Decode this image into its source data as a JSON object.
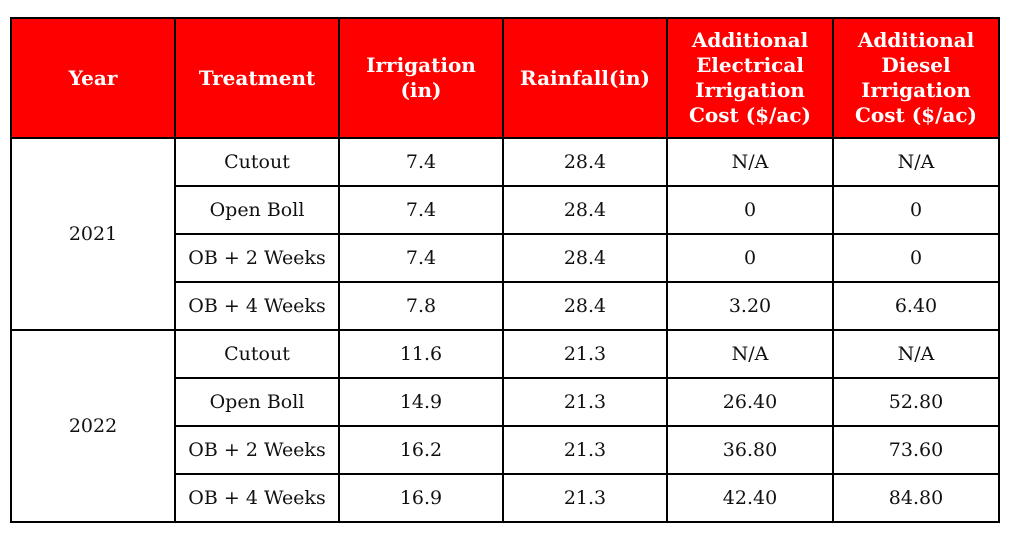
{
  "table": {
    "headers": [
      "Year",
      "Treatment",
      "Irrigation (in)",
      "Rainfall(in)",
      "Additional Electrical Irrigation Cost ($/ac)",
      "Additional Diesel Irrigation Cost ($/ac)"
    ],
    "groups": [
      {
        "year": "2021",
        "rows": [
          {
            "treatment": "Cutout",
            "irrigation": "7.4",
            "rainfall": "28.4",
            "electrical": "N/A",
            "diesel": "N/A"
          },
          {
            "treatment": "Open Boll",
            "irrigation": "7.4",
            "rainfall": "28.4",
            "electrical": "0",
            "diesel": "0"
          },
          {
            "treatment": "OB + 2 Weeks",
            "irrigation": "7.4",
            "rainfall": "28.4",
            "electrical": "0",
            "diesel": "0"
          },
          {
            "treatment": "OB + 4 Weeks",
            "irrigation": "7.8",
            "rainfall": "28.4",
            "electrical": "3.20",
            "diesel": "6.40"
          }
        ]
      },
      {
        "year": "2022",
        "rows": [
          {
            "treatment": "Cutout",
            "irrigation": "11.6",
            "rainfall": "21.3",
            "electrical": "N/A",
            "diesel": "N/A"
          },
          {
            "treatment": "Open Boll",
            "irrigation": "14.9",
            "rainfall": "21.3",
            "electrical": "26.40",
            "diesel": "52.80"
          },
          {
            "treatment": "OB + 2 Weeks",
            "irrigation": "16.2",
            "rainfall": "21.3",
            "electrical": "36.80",
            "diesel": "73.60"
          },
          {
            "treatment": "OB + 4 Weeks",
            "irrigation": "16.9",
            "rainfall": "21.3",
            "electrical": "42.40",
            "diesel": "84.80"
          }
        ]
      }
    ]
  },
  "colors": {
    "header_bg": "#ff0000",
    "header_text": "#ffffff",
    "border": "#000000"
  }
}
